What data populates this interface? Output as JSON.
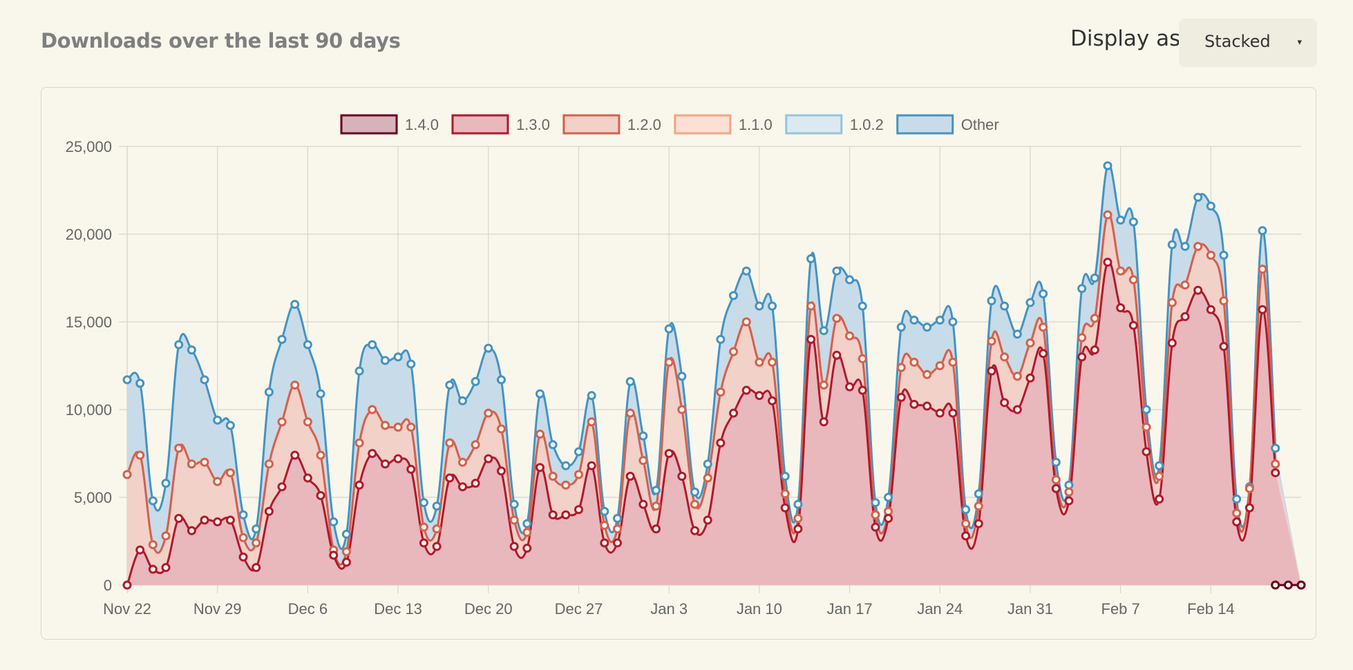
{
  "header": {
    "title": "Downloads over the last 90 days",
    "display_as_label": "Display as",
    "display_mode": "Stacked",
    "caret": "▾"
  },
  "chart_data": {
    "type": "area",
    "stacked": true,
    "title": "",
    "xlabel": "",
    "ylabel": "",
    "ylim": [
      0,
      25000
    ],
    "yticks": [
      0,
      5000,
      10000,
      15000,
      20000,
      25000
    ],
    "ytick_labels": [
      "0",
      "5,000",
      "10,000",
      "15,000",
      "20,000",
      "25,000"
    ],
    "x_start": "2023-11-22",
    "xtick_labels": [
      "Nov 22",
      "Nov 29",
      "Dec 6",
      "Dec 13",
      "Dec 20",
      "Dec 27",
      "Jan 3",
      "Jan 10",
      "Jan 17",
      "Jan 24",
      "Jan 31",
      "Feb 7",
      "Feb 14"
    ],
    "grid": true,
    "legend_position": "top",
    "series": [
      {
        "name": "1.4.0",
        "stroke": "#67001f",
        "fill": "#d6b3ba",
        "cumulative": [
          0,
          0,
          0,
          0,
          0,
          0,
          0,
          0,
          0,
          0,
          0,
          0,
          0,
          0,
          0,
          0,
          0,
          0,
          0,
          0,
          0,
          0,
          0,
          0,
          0,
          0,
          0,
          0,
          0,
          0,
          0,
          0,
          0,
          0,
          0,
          0,
          0,
          0,
          0,
          0,
          0,
          0,
          0,
          0,
          0,
          0,
          0,
          0,
          0,
          0,
          0,
          0,
          0,
          0,
          0,
          0,
          0,
          0,
          0,
          0,
          0,
          0,
          0,
          0,
          0,
          0,
          0,
          0,
          0,
          0,
          0,
          0,
          0,
          0,
          0,
          0,
          0,
          0,
          0,
          0,
          0,
          0,
          0,
          0,
          0,
          0,
          0,
          0,
          0,
          0,
          0,
          0
        ],
        "visible_from_index": 89
      },
      {
        "name": "1.3.0",
        "stroke": "#b2182b",
        "fill": "#e8b8bd",
        "cumulative": [
          0,
          2000,
          900,
          1000,
          3800,
          3100,
          3700,
          3600,
          3700,
          1600,
          1000,
          4200,
          5600,
          7400,
          6100,
          5100,
          1700,
          1300,
          5700,
          7500,
          6900,
          7200,
          6600,
          2400,
          2200,
          6100,
          5600,
          5800,
          7200,
          6500,
          2200,
          2100,
          6700,
          4000,
          4000,
          4300,
          6800,
          2400,
          2400,
          6200,
          4600,
          3200,
          7500,
          6200,
          3100,
          3700,
          8100,
          9800,
          11100,
          10800,
          10500,
          4400,
          3200,
          14000,
          9300,
          13100,
          11300,
          11100,
          3300,
          3800,
          10700,
          10300,
          10200,
          9800,
          9800,
          2800,
          3500,
          12200,
          10400,
          10000,
          11800,
          13200,
          5500,
          4800,
          13000,
          13400,
          18400,
          15800,
          14800,
          7600,
          4900,
          13800,
          15300,
          16800,
          15700,
          13600,
          3600,
          4400,
          15700,
          6400
        ],
        "visible_from_index": 0
      },
      {
        "name": "1.2.0",
        "stroke": "#d6604d",
        "fill": "#f2d1c8",
        "cumulative": [
          6300,
          7400,
          2300,
          2800,
          7800,
          6900,
          7000,
          5900,
          6400,
          2700,
          2400,
          6900,
          9300,
          11400,
          9300,
          7400,
          2000,
          1900,
          8100,
          10000,
          9100,
          9000,
          9000,
          3300,
          3200,
          8100,
          7000,
          8000,
          9800,
          8900,
          3700,
          3000,
          8600,
          6200,
          5700,
          6300,
          9300,
          3400,
          3200,
          9800,
          7100,
          4500,
          12700,
          10000,
          4600,
          6100,
          11000,
          13300,
          15000,
          12700,
          12700,
          5200,
          3800,
          15900,
          11400,
          15200,
          14200,
          12900,
          4000,
          4200,
          12400,
          12700,
          12000,
          12500,
          12700,
          3500,
          4500,
          13900,
          13000,
          11900,
          13800,
          14700,
          6000,
          5300,
          14100,
          15200,
          21100,
          17900,
          17400,
          9000,
          6200,
          16100,
          17100,
          19300,
          18800,
          16200,
          4100,
          5500,
          18000,
          6900
        ],
        "visible_from_index": 0
      },
      {
        "name": "1.1.0",
        "stroke": "#f4a582",
        "fill": "#fce0d5",
        "cumulative": [
          6300,
          7400,
          2300,
          2800,
          7800,
          6900,
          7000,
          5900,
          6400,
          2700,
          2400,
          6900,
          9300,
          11400,
          9300,
          7400,
          2000,
          1900,
          8100,
          10000,
          9100,
          9000,
          9000,
          3300,
          3200,
          8100,
          7000,
          8000,
          9800,
          8900,
          3700,
          3000,
          8600,
          6200,
          5700,
          6300,
          9300,
          3400,
          3200,
          9800,
          7100,
          4500,
          12700,
          10000,
          4600,
          6100,
          11000,
          13300,
          15000,
          12700,
          12700,
          5200,
          3800,
          15900,
          11400,
          15200,
          14200,
          12900,
          4000,
          4200,
          12400,
          12700,
          12000,
          12500,
          12700,
          3500,
          4500,
          13900,
          13000,
          11900,
          13800,
          14700,
          6000,
          5300,
          14100,
          15200,
          21100,
          17900,
          17400,
          9000,
          6200,
          16100,
          17100,
          19300,
          18800,
          16200,
          4100,
          5500,
          18000,
          6900
        ],
        "visible_from_index": 0
      },
      {
        "name": "1.0.2",
        "stroke": "#92c5de",
        "fill": "#dde9f1",
        "cumulative": [
          6300,
          7400,
          2300,
          2800,
          7800,
          6900,
          7000,
          5900,
          6400,
          2700,
          2400,
          6900,
          9300,
          11400,
          9300,
          7400,
          2000,
          1900,
          8100,
          10000,
          9100,
          9000,
          9000,
          3300,
          3200,
          8100,
          7000,
          8000,
          9800,
          8900,
          3700,
          3000,
          8600,
          6200,
          5700,
          6300,
          9300,
          3400,
          3200,
          9800,
          7100,
          4500,
          12700,
          10000,
          4600,
          6100,
          11000,
          13300,
          15000,
          12700,
          12700,
          5200,
          3800,
          15900,
          11400,
          15200,
          14200,
          12900,
          4000,
          4200,
          12400,
          12700,
          12000,
          12500,
          12700,
          3500,
          4500,
          13900,
          13000,
          11900,
          13800,
          14700,
          6000,
          5300,
          14100,
          15200,
          21100,
          17900,
          17400,
          9000,
          6200,
          16100,
          17100,
          19300,
          18800,
          16200,
          4100,
          5500,
          18000,
          6900
        ],
        "visible_from_index": 0
      },
      {
        "name": "Other",
        "stroke": "#4393c3",
        "fill": "#c8dbe8",
        "cumulative": [
          11700,
          11500,
          4800,
          5800,
          13700,
          13400,
          11700,
          9400,
          9100,
          4000,
          3200,
          11000,
          14000,
          16000,
          13700,
          10900,
          3600,
          2900,
          12200,
          13700,
          12800,
          13000,
          12600,
          4700,
          4500,
          11400,
          10500,
          11600,
          13500,
          11700,
          4600,
          3500,
          10900,
          8000,
          6800,
          7600,
          10800,
          4200,
          3800,
          11600,
          8500,
          5400,
          14600,
          11900,
          5300,
          6900,
          14000,
          16500,
          17900,
          15900,
          15900,
          6200,
          4600,
          18600,
          14500,
          17900,
          17400,
          15900,
          4700,
          5000,
          14700,
          15100,
          14700,
          15100,
          15000,
          4300,
          5200,
          16200,
          15900,
          14300,
          16100,
          16600,
          7000,
          5700,
          16900,
          17500,
          23900,
          20800,
          20700,
          10000,
          6800,
          19400,
          19300,
          22100,
          21600,
          18800,
          4900,
          5600,
          20200,
          7800
        ],
        "visible_from_index": 0
      }
    ]
  }
}
